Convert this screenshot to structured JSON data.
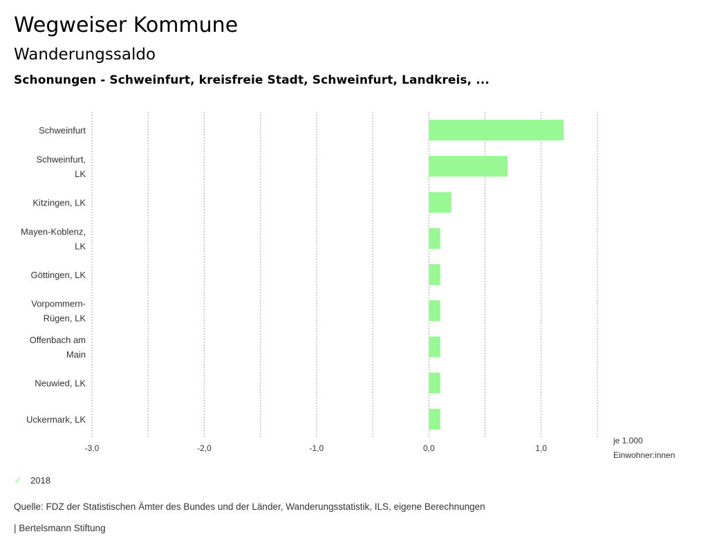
{
  "header": {
    "title": "Wegweiser Kommune",
    "subtitle": "Wanderungssaldo",
    "region": "Schonungen - Schweinfurt, kreisfreie Stadt, Schweinfurt, Landkreis, ..."
  },
  "chart_data": {
    "type": "bar",
    "orientation": "horizontal",
    "categories": [
      [
        "Schweinfurt"
      ],
      [
        "Schweinfurt,",
        "LK"
      ],
      [
        "Kitzingen, LK"
      ],
      [
        "Mayen-Koblenz,",
        "LK"
      ],
      [
        "Göttingen, LK"
      ],
      [
        "Vorpommern-",
        "Rügen, LK"
      ],
      [
        "Offenbach am",
        "Main"
      ],
      [
        "Neuwied, LK"
      ],
      [
        "Uckermark, LK"
      ]
    ],
    "series": [
      {
        "name": "2018",
        "values": [
          1.2,
          0.7,
          0.2,
          0.1,
          0.1,
          0.1,
          0.1,
          0.1,
          0.1
        ],
        "color": "#98f893"
      }
    ],
    "xlim": [
      -3.0,
      1.5
    ],
    "x_ticks": [
      -3.0,
      -2.0,
      -1.0,
      0.0,
      1.0
    ],
    "x_tick_labels": [
      "-3,0",
      "-2,0",
      "-1,0",
      "0,0",
      "1,0"
    ],
    "x_gridlines": [
      -3.0,
      -2.5,
      -2.0,
      -1.5,
      -1.0,
      -0.5,
      0.0,
      0.5,
      1.0,
      1.5
    ],
    "xlabel": [
      "je 1.000",
      "Einwohner:innen"
    ],
    "grid": true,
    "legend_position": "bottom-left"
  },
  "legend": {
    "icon": "check-icon",
    "label": "2018"
  },
  "footer": {
    "source": "Quelle: FDZ der Statistischen Ämter des Bundes und der Länder, Wanderungsstatistik, ILS, eigene Berechnungen",
    "brand": "| Bertelsmann Stiftung"
  }
}
